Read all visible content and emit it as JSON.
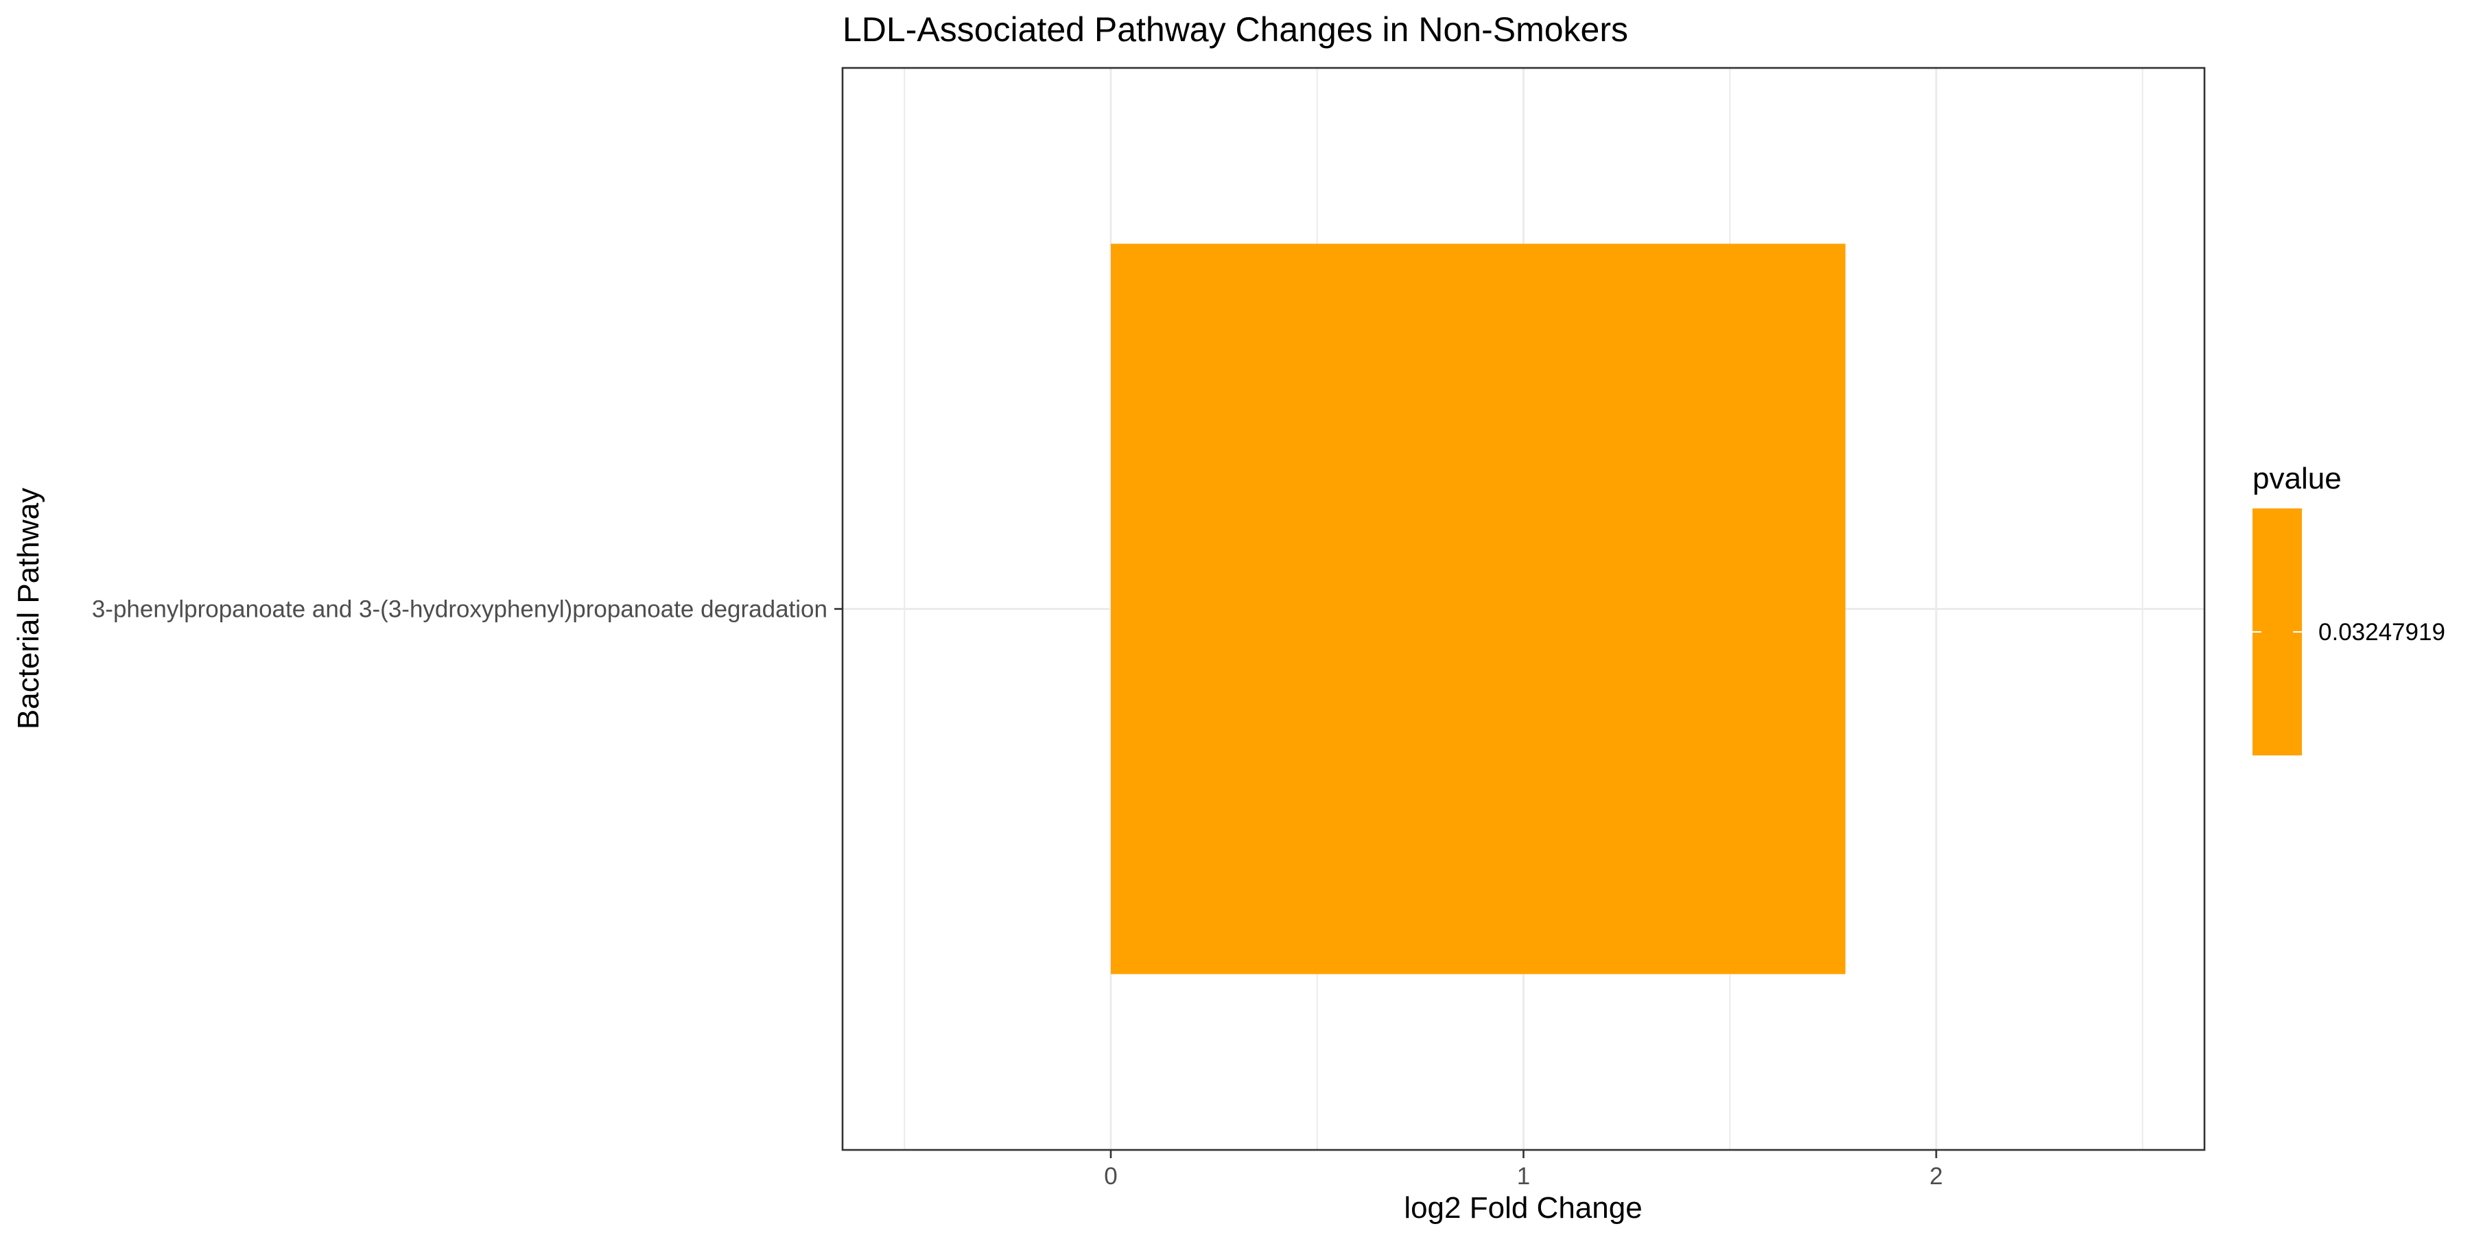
{
  "chart_data": {
    "type": "bar",
    "orientation": "horizontal",
    "title": "LDL-Associated Pathway Changes in Non-Smokers",
    "xlabel": "log2 Fold Change",
    "ylabel": "Bacterial Pathway",
    "xlim": [
      -0.65,
      2.65
    ],
    "x_ticks": [
      {
        "value": 0,
        "label": "0"
      },
      {
        "value": 1,
        "label": "1"
      },
      {
        "value": 2,
        "label": "2"
      }
    ],
    "x_minor_ticks": [
      -0.5,
      0.5,
      1.5,
      2.5
    ],
    "grid": true,
    "categories": [
      "3-phenylpropanoate and 3-(3-hydroxyphenyl)propanoate degradation"
    ],
    "series": [
      {
        "values": [
          1.78
        ],
        "pvalues": [
          0.03247919
        ],
        "color": "#ffa200"
      }
    ],
    "legend": {
      "title": "pvalue",
      "position": "right",
      "entries": [
        {
          "label": "0.03247919",
          "color": "#ffa200"
        }
      ]
    }
  }
}
